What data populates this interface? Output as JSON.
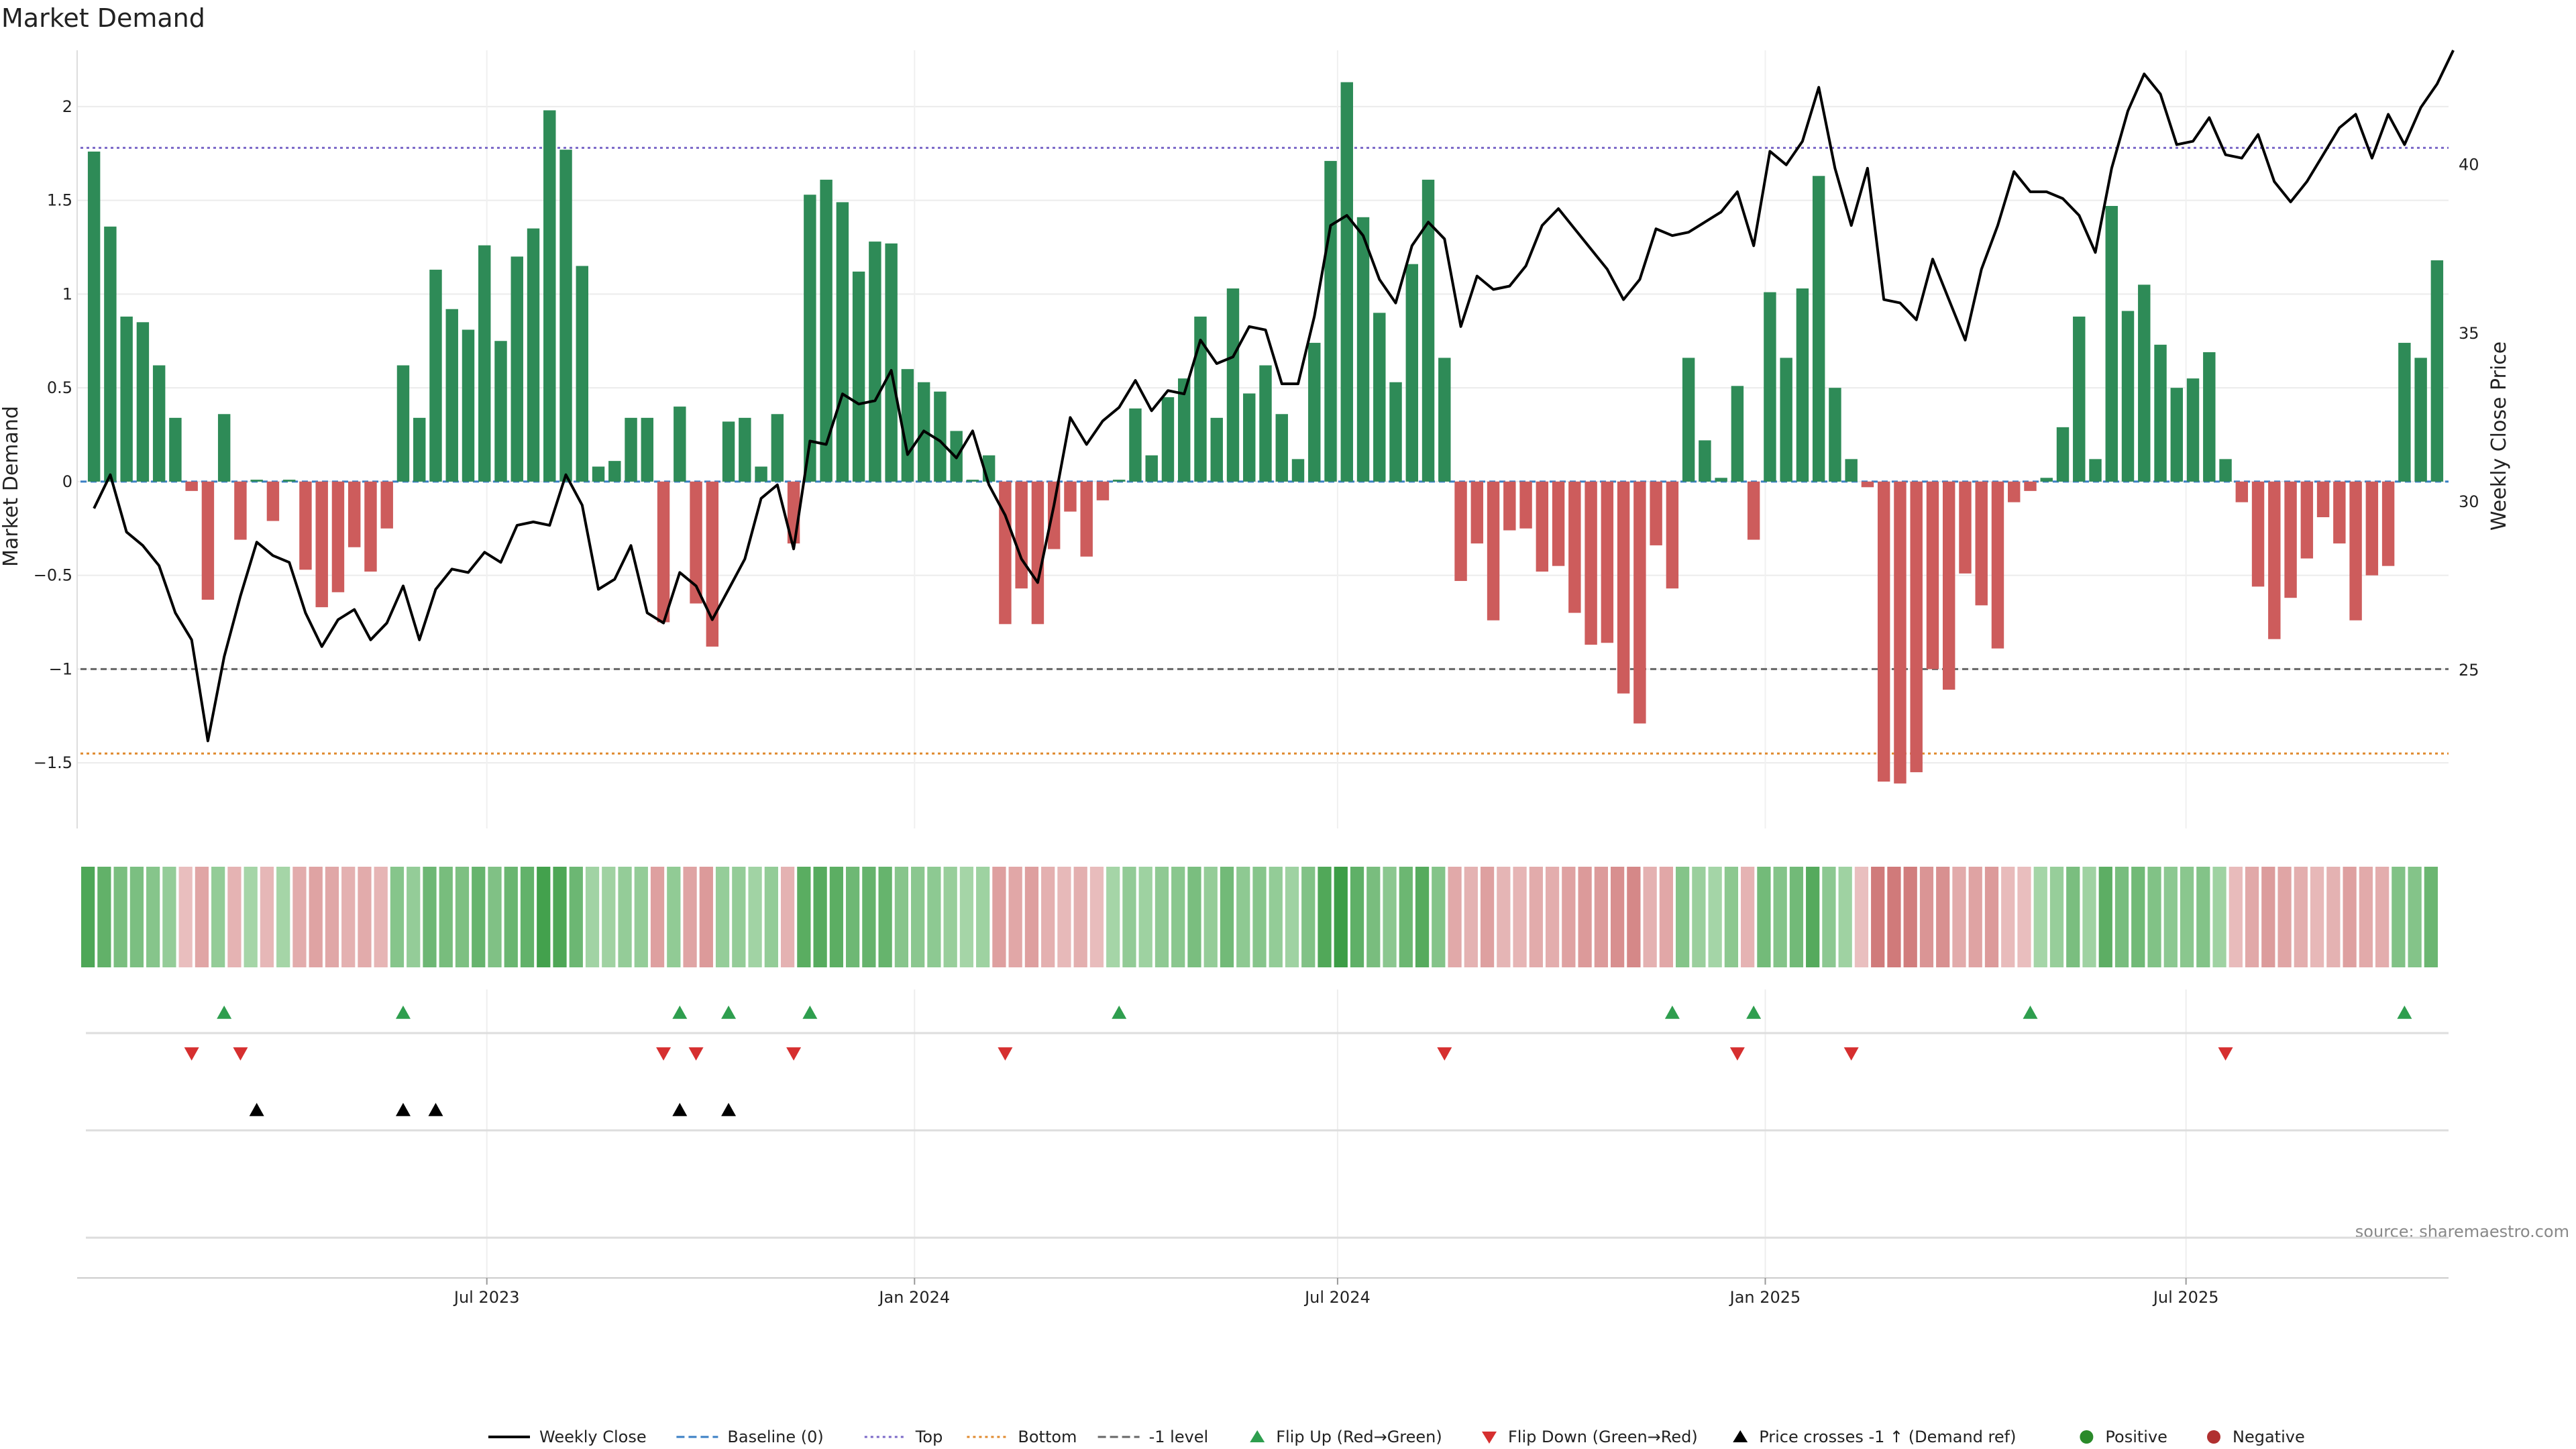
{
  "chart_data": {
    "type": "bar",
    "title": "Market Demand",
    "ylabel": "Market Demand",
    "y2label": "Weekly Close Price",
    "source": "source: sharemaestro.com",
    "ylim": [
      -1.85,
      2.3
    ],
    "y2lim": [
      20.3,
      43.4
    ],
    "yticks": [
      2,
      1.5,
      1,
      0.5,
      0,
      -0.5,
      -1,
      -1.5
    ],
    "ytick_labels": [
      "2",
      "1.5",
      "1",
      "0.5",
      "0",
      "−0.5",
      "−1",
      "−1.5"
    ],
    "y2ticks": [
      40,
      35,
      30,
      25
    ],
    "y2tick_labels": [
      "40",
      "35",
      "30",
      "25"
    ],
    "x_start": "2023-01-13",
    "week_days": 7,
    "x_ticks": [
      {
        "date": "2023-07-01",
        "label": "Jul 2023"
      },
      {
        "date": "2024-01-01",
        "label": "Jan 2024"
      },
      {
        "date": "2024-07-01",
        "label": "Jul 2024"
      },
      {
        "date": "2025-01-01",
        "label": "Jan 2025"
      },
      {
        "date": "2025-07-01",
        "label": "Jul 2025"
      }
    ],
    "reference_lines": [
      {
        "name": "Top",
        "value": 1.78,
        "color": "#7b68c8",
        "style": "dotted"
      },
      {
        "name": "Bottom",
        "value": -1.45,
        "color": "#e08a2e",
        "style": "dotted"
      },
      {
        "name": "-1 level",
        "value": -1.0,
        "color": "#666666",
        "style": "dashed"
      },
      {
        "name": "Baseline (0)",
        "value": 0,
        "color": "#3a7fc4",
        "style": "dashed"
      }
    ],
    "grid": true,
    "legend_position": "bottom",
    "demand": [
      1.76,
      1.36,
      0.88,
      0.85,
      0.62,
      0.34,
      -0.05,
      -0.63,
      0.36,
      -0.31,
      0.01,
      -0.21,
      0.01,
      -0.47,
      -0.67,
      -0.59,
      -0.35,
      -0.48,
      -0.25,
      0.62,
      0.34,
      1.13,
      0.92,
      0.81,
      1.26,
      0.75,
      1.2,
      1.35,
      1.98,
      1.77,
      1.15,
      0.08,
      0.11,
      0.34,
      0.34,
      -0.75,
      0.4,
      -0.65,
      -0.88,
      0.32,
      0.34,
      0.08,
      0.36,
      -0.33,
      1.53,
      1.61,
      1.49,
      1.12,
      1.28,
      1.27,
      0.6,
      0.53,
      0.48,
      0.27,
      0.01,
      0.14,
      -0.76,
      -0.57,
      -0.76,
      -0.36,
      -0.16,
      -0.4,
      -0.1,
      0.01,
      0.39,
      0.14,
      0.45,
      0.55,
      0.88,
      0.34,
      1.03,
      0.47,
      0.62,
      0.36,
      0.12,
      0.74,
      1.71,
      2.13,
      1.41,
      0.9,
      0.53,
      1.16,
      1.61,
      0.66,
      -0.53,
      -0.33,
      -0.74,
      -0.26,
      -0.25,
      -0.48,
      -0.45,
      -0.7,
      -0.87,
      -0.86,
      -1.13,
      -1.29,
      -0.34,
      -0.57,
      0.66,
      0.22,
      0.02,
      0.51,
      -0.31,
      1.01,
      0.66,
      1.03,
      1.63,
      0.5,
      0.12,
      -0.03,
      -1.6,
      -1.61,
      -1.55,
      -1.0,
      -1.11,
      -0.49,
      -0.66,
      -0.89,
      -0.11,
      -0.05,
      0.02,
      0.29,
      0.88,
      0.12,
      1.47,
      0.91,
      1.05,
      0.73,
      0.5,
      0.55,
      0.69,
      0.12,
      -0.11,
      -0.56,
      -0.84,
      -0.62,
      -0.41,
      -0.19,
      -0.33,
      -0.74,
      -0.5,
      -0.45,
      0.74,
      0.66,
      1.18
    ],
    "price": [
      29.8,
      30.8,
      29.1,
      28.7,
      28.1,
      26.7,
      25.9,
      22.9,
      25.4,
      27.2,
      28.8,
      28.4,
      28.2,
      26.7,
      25.7,
      26.5,
      26.8,
      25.9,
      26.4,
      27.5,
      25.9,
      27.4,
      28.0,
      27.9,
      28.5,
      28.2,
      29.3,
      29.4,
      29.3,
      30.8,
      29.9,
      27.4,
      27.7,
      28.7,
      26.7,
      26.4,
      27.9,
      27.5,
      26.5,
      27.4,
      28.3,
      30.1,
      30.5,
      28.6,
      31.8,
      31.7,
      33.2,
      32.9,
      33.0,
      33.9,
      31.4,
      32.1,
      31.8,
      31.3,
      32.1,
      30.5,
      29.6,
      28.3,
      27.6,
      29.9,
      32.5,
      31.7,
      32.4,
      32.8,
      33.6,
      32.7,
      33.3,
      33.2,
      34.8,
      34.1,
      34.3,
      35.2,
      35.1,
      33.5,
      33.5,
      35.5,
      38.2,
      38.5,
      37.9,
      36.6,
      35.9,
      37.6,
      38.3,
      37.8,
      35.2,
      36.7,
      36.3,
      36.4,
      37.0,
      38.2,
      38.7,
      38.1,
      37.5,
      36.9,
      36.0,
      36.6,
      38.1,
      37.9,
      38.0,
      38.3,
      38.6,
      39.2,
      37.6,
      40.4,
      40.0,
      40.7,
      42.3,
      39.9,
      38.2,
      39.9,
      36.0,
      35.9,
      35.4,
      37.2,
      36.0,
      34.8,
      36.9,
      38.2,
      39.8,
      39.2,
      39.2,
      39.0,
      38.5,
      37.4,
      39.9,
      41.6,
      42.7,
      42.1,
      40.6,
      40.7,
      41.4,
      40.3,
      40.2,
      40.9,
      39.5,
      38.9,
      39.5,
      40.3,
      41.1,
      41.5,
      40.2,
      41.5,
      40.6,
      41.7,
      42.4,
      43.4
    ],
    "flip_up_weeks": [
      8,
      19,
      36,
      39,
      44,
      63,
      97,
      102,
      119,
      142
    ],
    "flip_down_weeks": [
      6,
      9,
      35,
      37,
      43,
      56,
      83,
      101,
      108,
      131
    ],
    "crosses_weeks": [
      10,
      19,
      21,
      36,
      39
    ],
    "series": [
      {
        "name": "Weekly Close",
        "color": "#000000",
        "marker": "line"
      },
      {
        "name": "Baseline (0)",
        "color": "#3a7fc4",
        "marker": "dash"
      },
      {
        "name": "Top",
        "color": "#7b68c8",
        "marker": "dot"
      },
      {
        "name": "Bottom",
        "color": "#e08a2e",
        "marker": "dot"
      },
      {
        "name": "-1 level",
        "color": "#666666",
        "marker": "dash"
      },
      {
        "name": "Flip Up (Red→Green)",
        "color": "#2e9e4e",
        "marker": "tri-up"
      },
      {
        "name": "Flip Down (Green→Red)",
        "color": "#d62f2f",
        "marker": "tri-down"
      },
      {
        "name": "Price crosses -1 ↑ (Demand ref)",
        "color": "#000000",
        "marker": "tri-up"
      },
      {
        "name": "Positive",
        "color": "#2a8a2a",
        "marker": "circle"
      },
      {
        "name": "Negative",
        "color": "#b03030",
        "marker": "circle"
      }
    ],
    "colors": {
      "positive_bar": "#2e8b57",
      "negative_bar": "#cd5c5c"
    }
  }
}
